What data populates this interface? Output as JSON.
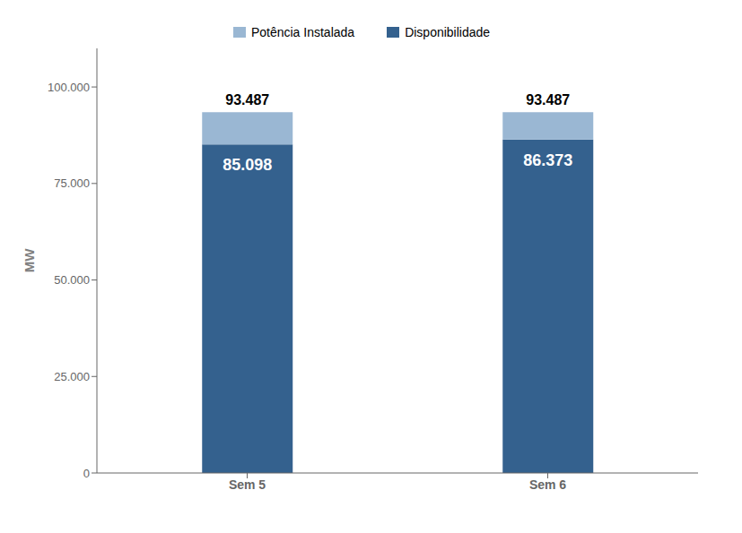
{
  "chart_data": {
    "type": "bar",
    "stacked": true,
    "categories": [
      "Sem 5",
      "Sem 6"
    ],
    "series": [
      {
        "name": "Disponibilidade",
        "color": "#34618e",
        "values": [
          85098,
          86373
        ],
        "data_labels": true,
        "value_labels": [
          "85.098",
          "86.373"
        ]
      },
      {
        "name": "Potência Instalada",
        "color": "#9ab7d3",
        "values": [
          8389,
          7114
        ]
      }
    ],
    "totals": [
      93487,
      93487
    ],
    "total_labels": [
      "93.487",
      "93.487"
    ],
    "ylabel": "MW",
    "ylim": [
      0,
      110000
    ],
    "yticks": [
      0,
      {
        "value": 25000,
        "label": "25.000"
      },
      {
        "value": 50000,
        "label": "50.000"
      },
      {
        "value": 75000,
        "label": "75.000"
      },
      {
        "value": 100000,
        "label": "100.000"
      }
    ],
    "grid": false,
    "legend": "top"
  }
}
